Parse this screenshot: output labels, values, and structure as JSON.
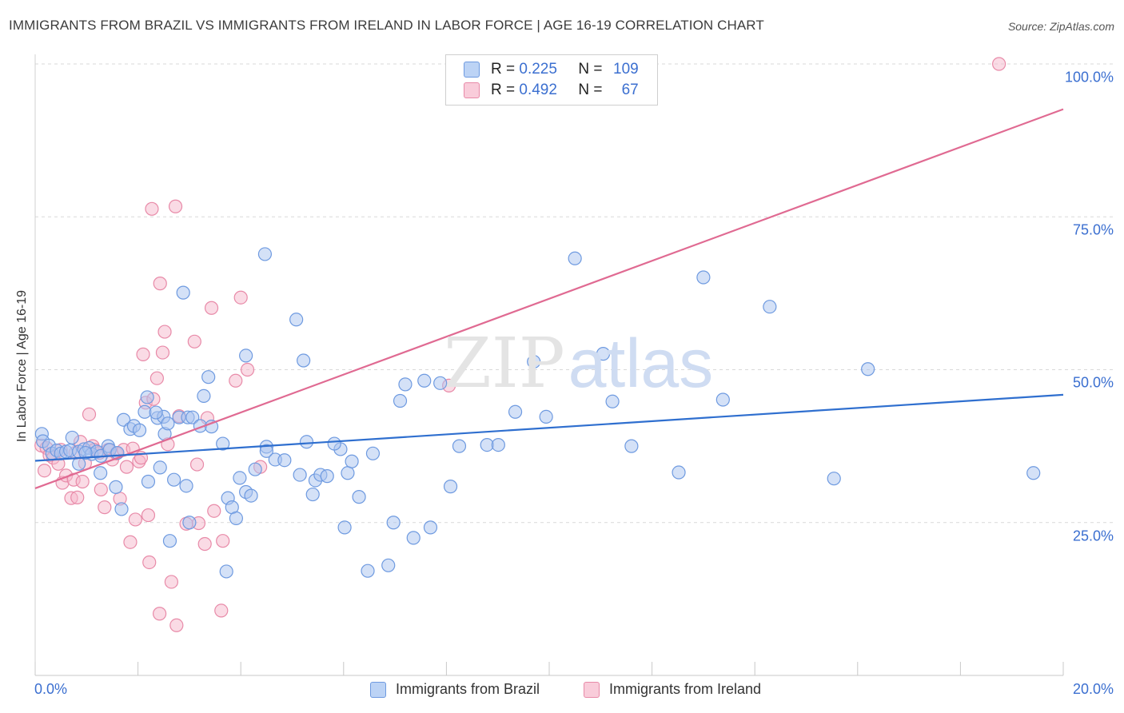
{
  "title": "IMMIGRANTS FROM BRAZIL VS IMMIGRANTS FROM IRELAND IN LABOR FORCE | AGE 16-19 CORRELATION CHART",
  "source": "Source: ZipAtlas.com",
  "watermark": {
    "zip": "ZIP",
    "atlas": "atlas"
  },
  "colors": {
    "brazil_fill": "#a9c4f0",
    "brazil_stroke": "#6e9ae0",
    "brazil_line": "#2f6fcf",
    "ireland_fill": "#f6b8cc",
    "ireland_stroke": "#e88aa8",
    "ireland_line": "#e06a92",
    "accent_text": "#3b6fd0"
  },
  "legend": {
    "rows": [
      {
        "r_label": "R = ",
        "r_value": "0.225",
        "n_label": "N = ",
        "n_value": "109"
      },
      {
        "r_label": "R = ",
        "r_value": "0.492",
        "n_label": "N = ",
        "n_value": "67"
      }
    ]
  },
  "chart_data": {
    "type": "scatter",
    "title": "IMMIGRANTS FROM BRAZIL VS IMMIGRANTS FROM IRELAND IN LABOR FORCE | AGE 16-19 CORRELATION CHART",
    "xlabel": "",
    "ylabel": "In Labor Force | Age 16-19",
    "xlim": [
      0,
      20
    ],
    "ylim": [
      0,
      100
    ],
    "x_tick_labels": [
      "0.0%",
      "20.0%"
    ],
    "y_tick_values": [
      25,
      50,
      75,
      100
    ],
    "y_tick_labels": [
      "25.0%",
      "50.0%",
      "75.0%",
      "100.0%"
    ],
    "grid": true,
    "legend_position": "top-center",
    "series": [
      {
        "name": "Immigrants from Brazil",
        "r": 0.225,
        "n": 109,
        "trend": {
          "x": [
            0,
            20
          ],
          "y": [
            35.1,
            45.9
          ]
        },
        "points": [
          [
            0.13,
            39.5
          ],
          [
            0.15,
            38.3
          ],
          [
            0.27,
            37.6
          ],
          [
            0.33,
            36.3
          ],
          [
            0.42,
            36.8
          ],
          [
            0.5,
            36.3
          ],
          [
            0.6,
            36.6
          ],
          [
            0.68,
            36.8
          ],
          [
            0.72,
            38.9
          ],
          [
            0.85,
            36.6
          ],
          [
            0.95,
            37.0
          ],
          [
            1.05,
            37.2
          ],
          [
            1.1,
            36.2
          ],
          [
            1.2,
            36.6
          ],
          [
            1.28,
            35.9
          ],
          [
            1.42,
            37.5
          ],
          [
            1.45,
            36.9
          ],
          [
            1.6,
            36.4
          ],
          [
            0.85,
            34.6
          ],
          [
            0.98,
            36.4
          ],
          [
            1.27,
            33.1
          ],
          [
            1.57,
            30.8
          ],
          [
            1.68,
            27.2
          ],
          [
            1.72,
            41.8
          ],
          [
            1.85,
            40.3
          ],
          [
            1.92,
            40.8
          ],
          [
            2.03,
            40.1
          ],
          [
            2.13,
            43.1
          ],
          [
            2.18,
            45.5
          ],
          [
            2.2,
            31.7
          ],
          [
            2.38,
            42.1
          ],
          [
            2.5,
            42.3
          ],
          [
            2.35,
            43.0
          ],
          [
            2.52,
            39.5
          ],
          [
            2.58,
            41.2
          ],
          [
            2.43,
            34.0
          ],
          [
            2.62,
            22.0
          ],
          [
            2.7,
            32.0
          ],
          [
            2.8,
            42.2
          ],
          [
            2.97,
            42.2
          ],
          [
            2.88,
            62.6
          ],
          [
            2.94,
            31.0
          ],
          [
            3.0,
            25.0
          ],
          [
            3.06,
            42.2
          ],
          [
            3.21,
            40.8
          ],
          [
            3.28,
            45.7
          ],
          [
            3.37,
            48.8
          ],
          [
            3.43,
            40.7
          ],
          [
            3.65,
            37.9
          ],
          [
            3.72,
            17.0
          ],
          [
            3.75,
            29.0
          ],
          [
            3.83,
            27.5
          ],
          [
            3.91,
            25.7
          ],
          [
            3.98,
            32.3
          ],
          [
            4.1,
            52.3
          ],
          [
            4.1,
            30.0
          ],
          [
            4.2,
            29.4
          ],
          [
            4.28,
            33.7
          ],
          [
            4.47,
            68.9
          ],
          [
            4.5,
            37.4
          ],
          [
            4.5,
            36.7
          ],
          [
            4.67,
            35.3
          ],
          [
            4.85,
            35.2
          ],
          [
            5.08,
            58.2
          ],
          [
            5.15,
            32.8
          ],
          [
            5.22,
            51.5
          ],
          [
            5.28,
            38.2
          ],
          [
            5.4,
            29.6
          ],
          [
            5.45,
            31.9
          ],
          [
            5.55,
            32.8
          ],
          [
            5.68,
            32.6
          ],
          [
            5.94,
            37.0
          ],
          [
            5.82,
            37.9
          ],
          [
            6.02,
            24.2
          ],
          [
            6.08,
            33.1
          ],
          [
            6.16,
            35.0
          ],
          [
            6.3,
            29.2
          ],
          [
            6.47,
            17.1
          ],
          [
            6.57,
            36.3
          ],
          [
            6.87,
            18.0
          ],
          [
            6.97,
            25.0
          ],
          [
            7.1,
            44.9
          ],
          [
            7.2,
            47.6
          ],
          [
            7.36,
            22.5
          ],
          [
            7.57,
            48.2
          ],
          [
            7.69,
            24.2
          ],
          [
            7.88,
            47.8
          ],
          [
            8.08,
            30.9
          ],
          [
            8.25,
            37.5
          ],
          [
            8.79,
            37.7
          ],
          [
            9.01,
            37.7
          ],
          [
            9.34,
            43.1
          ],
          [
            9.7,
            51.3
          ],
          [
            9.94,
            42.3
          ],
          [
            10.5,
            68.2
          ],
          [
            11.05,
            52.6
          ],
          [
            11.23,
            44.8
          ],
          [
            11.6,
            37.5
          ],
          [
            12.52,
            33.2
          ],
          [
            13.0,
            65.1
          ],
          [
            13.38,
            45.1
          ],
          [
            14.29,
            60.3
          ],
          [
            15.54,
            32.2
          ],
          [
            16.2,
            50.1
          ],
          [
            19.42,
            33.1
          ]
        ]
      },
      {
        "name": "Immigrants from Ireland",
        "r": 0.492,
        "n": 67,
        "trend": {
          "x": [
            0,
            20
          ],
          "y": [
            30.6,
            92.6
          ]
        },
        "points": [
          [
            0.12,
            37.6
          ],
          [
            0.18,
            33.5
          ],
          [
            0.22,
            37.2
          ],
          [
            0.28,
            36.0
          ],
          [
            0.35,
            35.6
          ],
          [
            0.45,
            34.6
          ],
          [
            0.5,
            36.9
          ],
          [
            0.53,
            31.5
          ],
          [
            0.6,
            32.7
          ],
          [
            0.7,
            29.0
          ],
          [
            0.75,
            32.0
          ],
          [
            0.78,
            36.4
          ],
          [
            0.82,
            29.1
          ],
          [
            0.88,
            38.2
          ],
          [
            0.92,
            31.7
          ],
          [
            0.97,
            34.7
          ],
          [
            1.05,
            42.7
          ],
          [
            1.12,
            37.5
          ],
          [
            1.15,
            36.9
          ],
          [
            1.25,
            36.4
          ],
          [
            1.28,
            30.4
          ],
          [
            1.35,
            27.5
          ],
          [
            1.42,
            36.9
          ],
          [
            1.5,
            35.3
          ],
          [
            1.58,
            36.3
          ],
          [
            1.65,
            28.9
          ],
          [
            1.72,
            36.9
          ],
          [
            1.78,
            34.1
          ],
          [
            1.85,
            21.8
          ],
          [
            1.9,
            37.1
          ],
          [
            1.95,
            25.5
          ],
          [
            2.02,
            35.0
          ],
          [
            2.06,
            35.6
          ],
          [
            2.1,
            52.5
          ],
          [
            2.15,
            44.6
          ],
          [
            2.2,
            26.2
          ],
          [
            2.22,
            18.5
          ],
          [
            2.27,
            76.3
          ],
          [
            2.3,
            45.2
          ],
          [
            2.37,
            48.6
          ],
          [
            2.42,
            10.1
          ],
          [
            2.43,
            64.1
          ],
          [
            2.48,
            52.8
          ],
          [
            2.52,
            56.2
          ],
          [
            2.58,
            37.8
          ],
          [
            2.65,
            15.3
          ],
          [
            2.73,
            76.7
          ],
          [
            2.75,
            8.2
          ],
          [
            2.8,
            42.4
          ],
          [
            2.94,
            24.8
          ],
          [
            3.1,
            54.6
          ],
          [
            3.15,
            34.5
          ],
          [
            3.18,
            24.9
          ],
          [
            3.3,
            21.5
          ],
          [
            3.35,
            42.1
          ],
          [
            3.43,
            60.1
          ],
          [
            3.48,
            26.9
          ],
          [
            3.62,
            10.6
          ],
          [
            3.65,
            22.0
          ],
          [
            3.9,
            48.2
          ],
          [
            4.0,
            61.8
          ],
          [
            4.13,
            50.0
          ],
          [
            4.38,
            34.1
          ],
          [
            8.05,
            47.4
          ],
          [
            18.75,
            100.0
          ]
        ]
      }
    ]
  },
  "bottom_legend": [
    "Immigrants from Brazil",
    "Immigrants from Ireland"
  ]
}
